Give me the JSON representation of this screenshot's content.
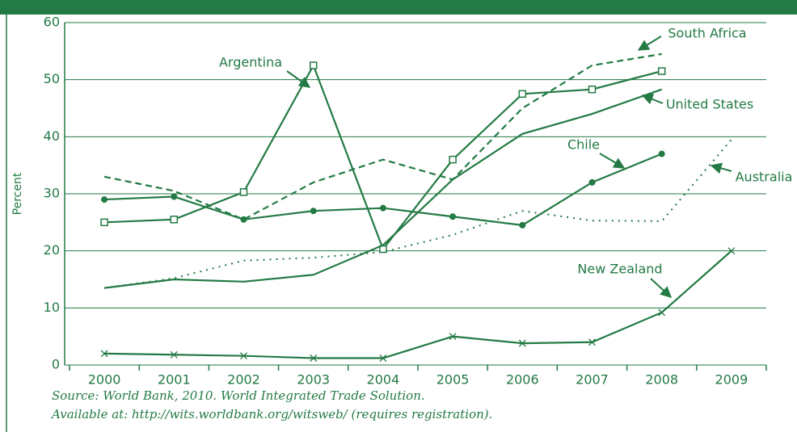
{
  "chart_data": {
    "type": "line",
    "categories": [
      "2000",
      "2001",
      "2002",
      "2003",
      "2004",
      "2005",
      "2006",
      "2007",
      "2008",
      "2009"
    ],
    "ylabel": "Percent",
    "ylim": [
      0,
      60
    ],
    "yticks": [
      0,
      10,
      20,
      30,
      40,
      50,
      60
    ],
    "grid": true,
    "series": [
      {
        "name": "Argentina",
        "color": "#237a44",
        "dash": "solid",
        "marker": "square",
        "values": [
          25,
          25.5,
          30.3,
          52.5,
          20.3,
          36,
          47.5,
          48.3,
          51.5,
          null
        ]
      },
      {
        "name": "South Africa",
        "color": "#237a44",
        "dash": "dashed",
        "marker": "none",
        "values": [
          33,
          30.5,
          25.5,
          32,
          36,
          32.5,
          45,
          52.5,
          54.5,
          null
        ]
      },
      {
        "name": "United States",
        "color": "#237a44",
        "dash": "solid",
        "marker": "none",
        "values": [
          13.5,
          15,
          14.6,
          15.8,
          21,
          32.5,
          40.5,
          44,
          48.3,
          null
        ]
      },
      {
        "name": "Chile",
        "color": "#237a44",
        "dash": "solid",
        "marker": "circle",
        "values": [
          29,
          29.5,
          25.5,
          27,
          27.5,
          26,
          24.5,
          32,
          37,
          null
        ]
      },
      {
        "name": "Australia",
        "color": "#237a44",
        "dash": "dotted",
        "marker": "none",
        "values": [
          13.5,
          15.2,
          18.3,
          18.8,
          19.8,
          22.8,
          27,
          25.3,
          25.2,
          39.5
        ]
      },
      {
        "name": "New Zealand",
        "color": "#237a44",
        "dash": "solid",
        "marker": "cross",
        "values": [
          2,
          1.8,
          1.6,
          1.2,
          1.2,
          5,
          3.8,
          4,
          9.2,
          20
        ]
      }
    ],
    "notes": [
      "Source: World Bank, 2010. World Integrated Trade Solution.",
      "Available at: http://wits.worldbank.org/witsweb/ (requires registration)."
    ]
  }
}
